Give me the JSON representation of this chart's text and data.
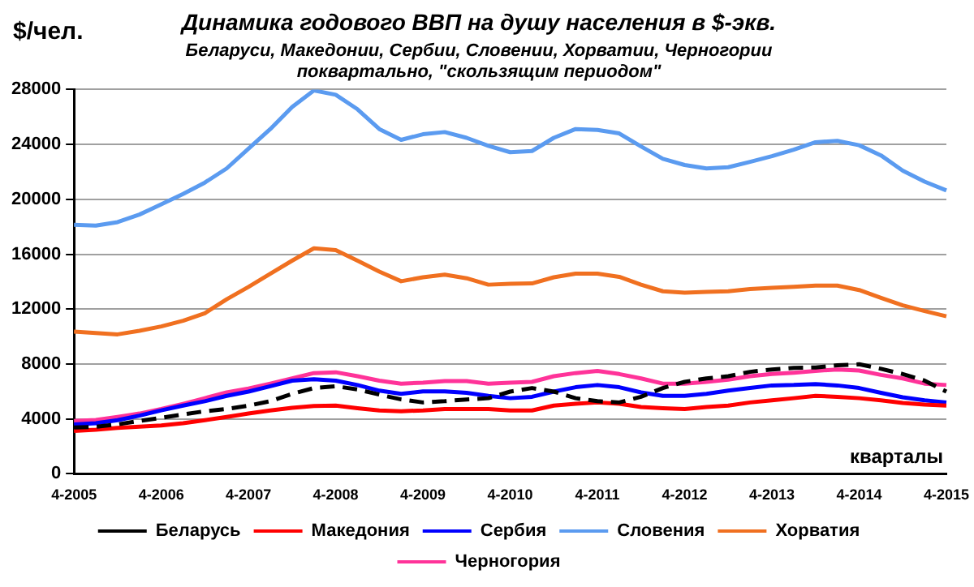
{
  "chart_data": {
    "type": "line",
    "title": "Динамика годового ВВП на душу населения в $-экв.",
    "subtitle": "Беларуси, Македонии, Сербии, Словении, Хорватии, Черногории\nпоквартально, \"скользящим периодом\"",
    "ylabel": "$/чел.",
    "xlabel": "кварталы",
    "categories": [
      "4-2005",
      null,
      null,
      null,
      "4-2006",
      null,
      null,
      null,
      "4-2007",
      null,
      null,
      null,
      "4-2008",
      null,
      null,
      null,
      "4-2009",
      null,
      null,
      null,
      "4-2010",
      null,
      null,
      null,
      "4-2011",
      null,
      null,
      null,
      "4-2012",
      null,
      null,
      null,
      "4-2013",
      null,
      null,
      null,
      "4-2014",
      null,
      null,
      null,
      "4-2015"
    ],
    "ylim": [
      0,
      28000
    ],
    "yticks": [
      0,
      4000,
      8000,
      12000,
      16000,
      20000,
      24000,
      28000
    ],
    "grid": "y",
    "legend": "bottom",
    "marker": "none",
    "line_style": "solid",
    "series": [
      {
        "name": "Беларусь",
        "color": "#000000",
        "line_style": "dashed",
        "values": [
          3370,
          3430,
          3600,
          3850,
          4080,
          4330,
          4560,
          4720,
          4970,
          5290,
          5830,
          6250,
          6380,
          6150,
          5770,
          5420,
          5200,
          5290,
          5420,
          5510,
          5990,
          6250,
          5990,
          5510,
          5290,
          5200,
          5610,
          6250,
          6700,
          6950,
          7110,
          7430,
          7600,
          7720,
          7750,
          7910,
          7980,
          7650,
          7270,
          6790,
          5990
        ]
      },
      {
        "name": "Македония",
        "color": "#ff0000",
        "values": [
          3120,
          3210,
          3340,
          3430,
          3530,
          3690,
          3910,
          4140,
          4390,
          4620,
          4810,
          4940,
          4970,
          4780,
          4620,
          4560,
          4620,
          4720,
          4720,
          4720,
          4620,
          4620,
          4970,
          5100,
          5200,
          5100,
          4870,
          4780,
          4720,
          4870,
          4970,
          5200,
          5350,
          5510,
          5680,
          5610,
          5510,
          5350,
          5160,
          5040,
          4970
        ]
      },
      {
        "name": "Сербия",
        "color": "#0000ff",
        "values": [
          3600,
          3690,
          3910,
          4240,
          4620,
          4970,
          5290,
          5680,
          5990,
          6380,
          6790,
          6890,
          6790,
          6470,
          6060,
          5830,
          6000,
          6000,
          5900,
          5680,
          5510,
          5610,
          5990,
          6310,
          6470,
          6310,
          5930,
          5680,
          5680,
          5830,
          6060,
          6250,
          6440,
          6470,
          6540,
          6440,
          6250,
          5900,
          5580,
          5350,
          5200
        ]
      },
      {
        "name": "Словения",
        "color": "#5b9bf0",
        "values": [
          18150,
          18090,
          18340,
          18890,
          19630,
          20390,
          21220,
          22250,
          23690,
          25120,
          26720,
          27930,
          27620,
          26560,
          25120,
          24330,
          24740,
          24900,
          24480,
          23900,
          23430,
          23520,
          24480,
          25120,
          25060,
          24800,
          23850,
          22950,
          22500,
          22250,
          22340,
          22730,
          23140,
          23620,
          24160,
          24260,
          23940,
          23200,
          22090,
          21290,
          20650
        ]
      },
      {
        "name": "Хорватия",
        "color": "#f07020",
        "values": [
          10360,
          10260,
          10160,
          10420,
          10740,
          11150,
          11700,
          12720,
          13620,
          14580,
          15530,
          16430,
          16300,
          15530,
          14730,
          14030,
          14320,
          14510,
          14250,
          13780,
          13840,
          13870,
          14320,
          14580,
          14580,
          14350,
          13780,
          13300,
          13200,
          13260,
          13300,
          13460,
          13550,
          13620,
          13710,
          13710,
          13390,
          12820,
          12270,
          11860,
          11480
        ]
      },
      {
        "name": "Черногория",
        "color": "#ff3399",
        "values": [
          3850,
          3920,
          4140,
          4390,
          4720,
          5100,
          5510,
          5930,
          6210,
          6570,
          6950,
          7340,
          7400,
          7110,
          6790,
          6570,
          6640,
          6760,
          6760,
          6570,
          6640,
          6700,
          7110,
          7340,
          7500,
          7270,
          6950,
          6570,
          6570,
          6700,
          6860,
          7110,
          7270,
          7370,
          7500,
          7600,
          7530,
          7210,
          6950,
          6570,
          6470
        ]
      }
    ]
  }
}
